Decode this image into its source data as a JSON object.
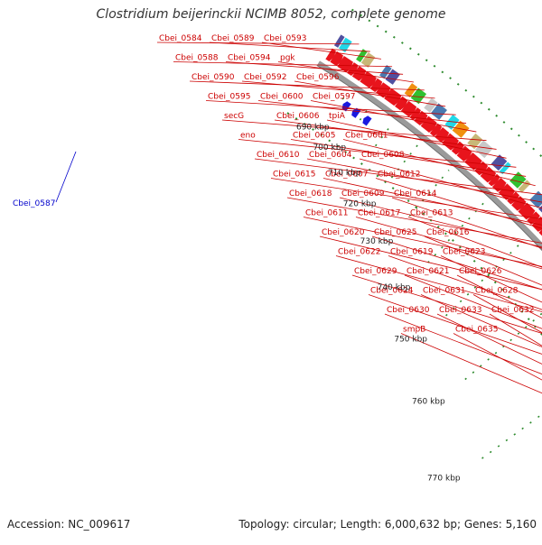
{
  "title": "Clostridium beijerinckii NCIMB 8052, complete genome",
  "footer": {
    "accession": "Accession: NC_009617",
    "summary": "Topology: circular; Length: 6,000,632 bp; Genes: 5,160"
  },
  "scale_ticks": [
    "690 kbp",
    "700 kbp",
    "710 kbp",
    "720 kbp",
    "730 kbp",
    "740 kbp",
    "750 kbp",
    "760 kbp",
    "770 kbp"
  ],
  "gene_labels": [
    "Cbei_0584",
    "Cbei_0589",
    "Cbei_0593",
    "Cbei_0588",
    "Cbei_0594",
    "pgk",
    "Cbei_0590",
    "Cbei_0592",
    "Cbei_0596",
    "Cbei_0595",
    "Cbei_0600",
    "Cbei_0597",
    "secG",
    "Cbei_0606",
    "tpiA",
    "eno",
    "Cbei_0605",
    "Cbei_0601",
    "Cbei_0610",
    "Cbei_0604",
    "Cbei_0608",
    "Cbei_0615",
    "Cbei_0607",
    "Cbei_0612",
    "Cbei_0618",
    "Cbei_0609",
    "Cbei_0614",
    "Cbei_0611",
    "Cbei_0617",
    "Cbei_0613",
    "Cbei_0620",
    "Cbei_0625",
    "Cbei_0616",
    "Cbei_0622",
    "Cbei_0619",
    "Cbei_0623",
    "Cbei_0629",
    "Cbei_0621",
    "Cbei_0626",
    "Cbei_0624",
    "Cbei_0631",
    "Cbei_0628",
    "Cbei_0630",
    "Cbei_0633",
    "Cbei_0632",
    "smpB",
    "Cbei_0635"
  ],
  "blue_label": "Cbei_0587",
  "colors": {
    "forward_gene": "#e8141c",
    "reverse_gene": "#1a1ae0",
    "label_red": "#cc0000",
    "label_blue": "#0000cc",
    "backbone": "#9a9a9a",
    "tick": "#2e8b2e",
    "cog_purple": "#5050a0",
    "cog_cyan": "#20d8e8",
    "cog_orange": "#f09010",
    "cog_green": "#30c030",
    "cog_khaki": "#c8b878",
    "cog_grey": "#c8c8c8",
    "cog_steel": "#4a7ab0"
  }
}
